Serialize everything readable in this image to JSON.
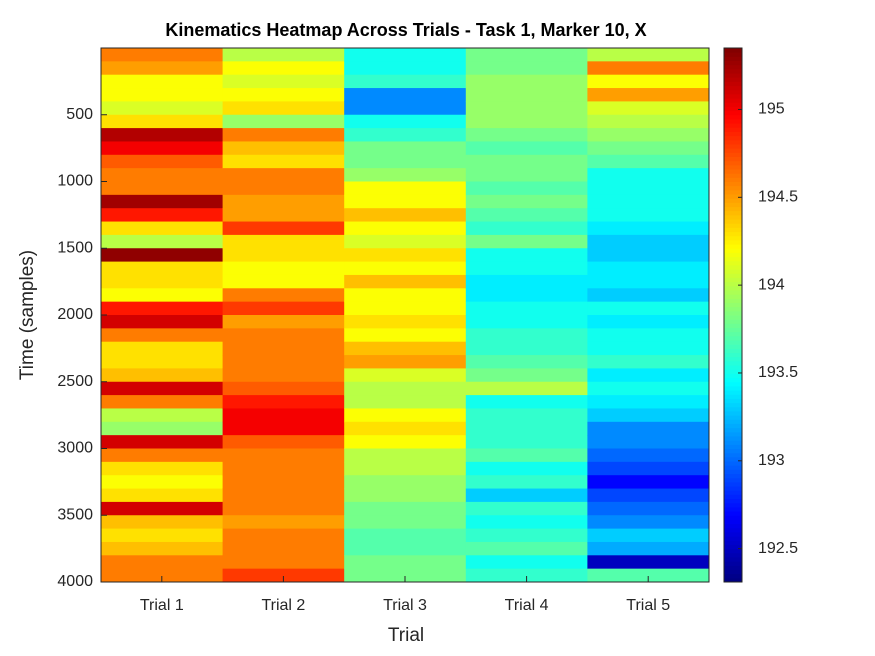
{
  "chart_data": {
    "type": "heatmap",
    "title": "Kinematics Heatmap Across Trials - Task 1, Marker 10, X",
    "x_label": "Trial",
    "y_label": "Time (samples)",
    "categories": [
      "Trial 1",
      "Trial 2",
      "Trial 3",
      "Trial 4",
      "Trial 5"
    ],
    "y": [
      50,
      150,
      250,
      350,
      450,
      550,
      650,
      750,
      850,
      950,
      1050,
      1150,
      1250,
      1350,
      1450,
      1550,
      1650,
      1750,
      1850,
      1950,
      2050,
      2150,
      2250,
      2350,
      2450,
      2550,
      2650,
      2750,
      2850,
      2950,
      3050,
      3150,
      3250,
      3350,
      3450,
      3550,
      3650,
      3750,
      3850,
      3950
    ],
    "values": [
      [
        194.6,
        194.5,
        194.2,
        194.2,
        194.1,
        194.3,
        195.2,
        195.0,
        194.7,
        194.6,
        194.6,
        195.25,
        194.9,
        194.3,
        194.0,
        195.3,
        194.3,
        194.3,
        194.2,
        194.9,
        195.1,
        194.6,
        194.3,
        194.3,
        194.4,
        195.1,
        194.6,
        194.0,
        193.9,
        195.1,
        194.6,
        194.3,
        194.2,
        194.3,
        195.1,
        194.4,
        194.3,
        194.4,
        194.6,
        194.6
      ],
      [
        194.0,
        194.2,
        194.1,
        194.2,
        194.3,
        193.9,
        194.6,
        194.4,
        194.3,
        194.6,
        194.6,
        194.5,
        194.5,
        194.8,
        194.3,
        194.3,
        194.2,
        194.2,
        194.6,
        194.8,
        194.5,
        194.6,
        194.6,
        194.6,
        194.6,
        194.7,
        194.9,
        195.0,
        195.0,
        194.7,
        194.6,
        194.6,
        194.6,
        194.6,
        194.6,
        194.5,
        194.6,
        194.6,
        194.6,
        194.8
      ],
      [
        193.5,
        193.5,
        193.6,
        193.1,
        193.1,
        193.5,
        193.6,
        193.8,
        193.8,
        193.9,
        194.2,
        194.2,
        194.4,
        194.2,
        194.1,
        194.3,
        194.2,
        194.4,
        194.2,
        194.2,
        194.3,
        194.2,
        194.4,
        194.5,
        194.1,
        194.0,
        194.0,
        194.2,
        194.3,
        194.2,
        194.0,
        194.0,
        193.9,
        193.9,
        193.8,
        193.8,
        193.7,
        193.7,
        193.8,
        193.8
      ],
      [
        193.8,
        193.8,
        193.9,
        193.9,
        193.9,
        193.9,
        193.8,
        193.7,
        193.8,
        193.8,
        193.7,
        193.8,
        193.7,
        193.6,
        193.8,
        193.5,
        193.5,
        193.4,
        193.4,
        193.5,
        193.5,
        193.6,
        193.6,
        193.7,
        193.8,
        194.0,
        193.5,
        193.6,
        193.6,
        193.6,
        193.7,
        193.5,
        193.6,
        193.3,
        193.6,
        193.5,
        193.6,
        193.7,
        193.5,
        193.6
      ],
      [
        194.0,
        194.6,
        194.2,
        194.5,
        194.1,
        194.0,
        193.9,
        193.8,
        193.7,
        193.5,
        193.5,
        193.5,
        193.5,
        193.4,
        193.3,
        193.3,
        193.4,
        193.4,
        193.3,
        193.5,
        193.4,
        193.5,
        193.5,
        193.6,
        193.4,
        193.5,
        193.4,
        193.3,
        193.1,
        193.1,
        193.0,
        192.9,
        192.7,
        192.9,
        193.0,
        193.1,
        193.3,
        193.2,
        192.5,
        193.7
      ]
    ],
    "ylim": [
      0,
      4000
    ],
    "y_reversed": true,
    "yticks": [
      500,
      1000,
      1500,
      2000,
      2500,
      3000,
      3500,
      4000
    ],
    "colormap": "jet",
    "clim": [
      192.31,
      195.35
    ],
    "cticks": [
      192.5,
      193,
      193.5,
      194,
      194.5,
      195
    ]
  }
}
